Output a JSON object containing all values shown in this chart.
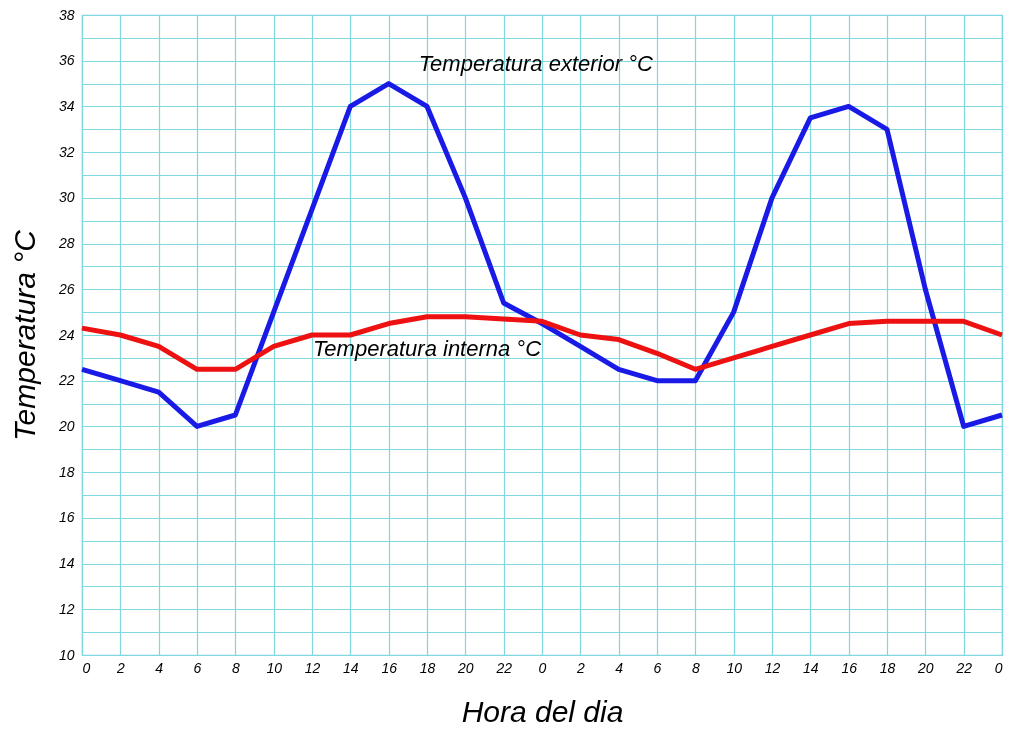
{
  "chart_data": {
    "type": "line",
    "xlabel": "Hora del dia",
    "ylabel": "Temperatura °C",
    "categories": [
      "0",
      "2",
      "4",
      "6",
      "8",
      "10",
      "12",
      "14",
      "16",
      "18",
      "20",
      "22",
      "0",
      "2",
      "4",
      "6",
      "8",
      "10",
      "12",
      "14",
      "16",
      "18",
      "20",
      "22",
      "0"
    ],
    "series": [
      {
        "name": "Temperatura exterior °C",
        "color": "#1a1ae6",
        "values": [
          22.5,
          22,
          21.5,
          20,
          20.5,
          25,
          29.5,
          34,
          35,
          34,
          30,
          25.4,
          24.5,
          23.5,
          22.5,
          22,
          22,
          25,
          30,
          33.5,
          34,
          33,
          26,
          20,
          20.5
        ]
      },
      {
        "name": "Temperatura interna °C",
        "color": "#ee1111",
        "values": [
          24.3,
          24,
          23.5,
          22.5,
          22.5,
          23.5,
          24,
          24,
          24.5,
          24.8,
          24.8,
          24.7,
          24.6,
          24,
          23.8,
          23.2,
          22.5,
          23,
          23.5,
          24,
          24.5,
          24.6,
          24.6,
          24.6,
          24
        ]
      }
    ],
    "ylim": [
      10,
      38
    ],
    "yticks": [
      10,
      {
        "value": 11,
        "label": null
      },
      12,
      {
        "value": 13,
        "label": null
      },
      14,
      {
        "value": 15,
        "label": null
      },
      16,
      {
        "value": 17,
        "label": null
      },
      18,
      {
        "value": 19,
        "label": null
      },
      20,
      {
        "value": 21,
        "label": null
      },
      22,
      {
        "value": 23,
        "label": null
      },
      24,
      {
        "value": 25,
        "label": null
      },
      26,
      {
        "value": 27,
        "label": null
      },
      28,
      {
        "value": 29,
        "label": null
      },
      30,
      {
        "value": 31,
        "label": null
      },
      32,
      {
        "value": 33,
        "label": null
      },
      34,
      {
        "value": 35,
        "label": null
      },
      36,
      {
        "value": 37,
        "label": null
      },
      38
    ],
    "grid": true,
    "legend": false,
    "marker": "none",
    "line_style": "solid"
  }
}
